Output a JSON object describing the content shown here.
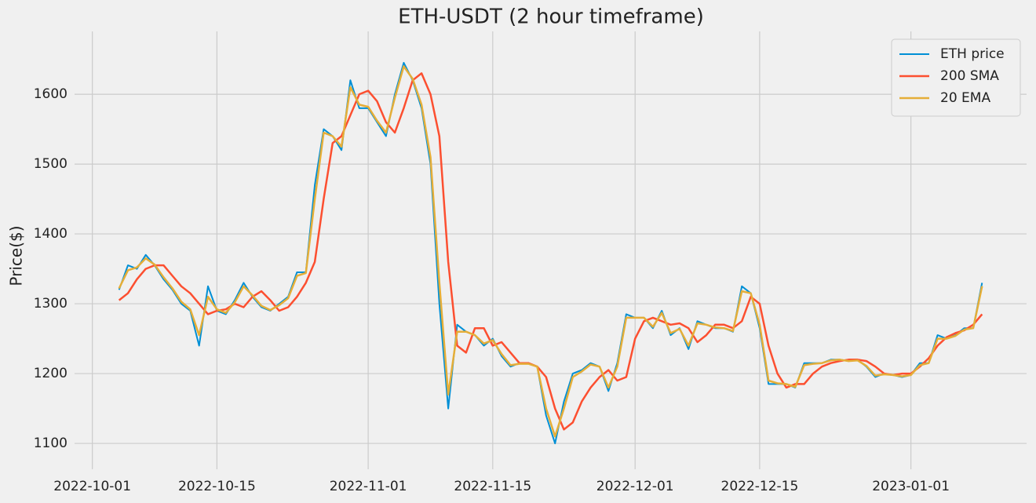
{
  "chart_data": {
    "type": "line",
    "title": "ETH-USDT (2 hour timeframe)",
    "y_label": "Price($)",
    "x": [
      "2022-10-04",
      "2022-10-05",
      "2022-10-06",
      "2022-10-07",
      "2022-10-08",
      "2022-10-09",
      "2022-10-10",
      "2022-10-11",
      "2022-10-12",
      "2022-10-13",
      "2022-10-14",
      "2022-10-15",
      "2022-10-16",
      "2022-10-17",
      "2022-10-18",
      "2022-10-19",
      "2022-10-20",
      "2022-10-21",
      "2022-10-22",
      "2022-10-23",
      "2022-10-24",
      "2022-10-25",
      "2022-10-26",
      "2022-10-27",
      "2022-10-28",
      "2022-10-29",
      "2022-10-30",
      "2022-10-31",
      "2022-11-01",
      "2022-11-02",
      "2022-11-03",
      "2022-11-04",
      "2022-11-05",
      "2022-11-06",
      "2022-11-07",
      "2022-11-08",
      "2022-11-09",
      "2022-11-10",
      "2022-11-11",
      "2022-11-12",
      "2022-11-13",
      "2022-11-14",
      "2022-11-15",
      "2022-11-16",
      "2022-11-17",
      "2022-11-18",
      "2022-11-19",
      "2022-11-20",
      "2022-11-21",
      "2022-11-22",
      "2022-11-23",
      "2022-11-24",
      "2022-11-25",
      "2022-11-26",
      "2022-11-27",
      "2022-11-28",
      "2022-11-29",
      "2022-11-30",
      "2022-12-01",
      "2022-12-02",
      "2022-12-03",
      "2022-12-04",
      "2022-12-05",
      "2022-12-06",
      "2022-12-07",
      "2022-12-08",
      "2022-12-09",
      "2022-12-10",
      "2022-12-11",
      "2022-12-12",
      "2022-12-13",
      "2022-12-14",
      "2022-12-15",
      "2022-12-16",
      "2022-12-17",
      "2022-12-18",
      "2022-12-19",
      "2022-12-20",
      "2022-12-21",
      "2022-12-22",
      "2022-12-23",
      "2022-12-24",
      "2022-12-25",
      "2022-12-26",
      "2022-12-27",
      "2022-12-28",
      "2022-12-29",
      "2022-12-30",
      "2022-12-31",
      "2023-01-01",
      "2023-01-02",
      "2023-01-03",
      "2023-01-04",
      "2023-01-05",
      "2023-01-06",
      "2023-01-07",
      "2023-01-08",
      "2023-01-09"
    ],
    "series": [
      {
        "name": "ETH price",
        "color": "#008fd5",
        "width": 2,
        "values": [
          1320,
          1355,
          1350,
          1370,
          1355,
          1335,
          1320,
          1300,
          1290,
          1240,
          1325,
          1290,
          1285,
          1305,
          1330,
          1310,
          1295,
          1290,
          1300,
          1310,
          1345,
          1345,
          1470,
          1550,
          1540,
          1520,
          1620,
          1580,
          1580,
          1560,
          1540,
          1600,
          1645,
          1620,
          1580,
          1500,
          1300,
          1150,
          1270,
          1260,
          1255,
          1240,
          1250,
          1225,
          1210,
          1215,
          1215,
          1210,
          1140,
          1100,
          1160,
          1200,
          1205,
          1215,
          1210,
          1175,
          1215,
          1285,
          1280,
          1280,
          1265,
          1290,
          1255,
          1265,
          1235,
          1275,
          1270,
          1265,
          1265,
          1260,
          1325,
          1315,
          1265,
          1185,
          1185,
          1185,
          1180,
          1215,
          1215,
          1215,
          1220,
          1220,
          1218,
          1220,
          1210,
          1195,
          1200,
          1198,
          1195,
          1198,
          1215,
          1215,
          1255,
          1250,
          1255,
          1265,
          1265,
          1330
        ]
      },
      {
        "name": "200 SMA",
        "color": "#fc4f30",
        "width": 2.5,
        "values": [
          1305,
          1315,
          1335,
          1350,
          1355,
          1355,
          1340,
          1325,
          1315,
          1300,
          1285,
          1290,
          1292,
          1300,
          1295,
          1310,
          1318,
          1305,
          1290,
          1295,
          1310,
          1330,
          1360,
          1450,
          1530,
          1540,
          1570,
          1600,
          1605,
          1590,
          1560,
          1545,
          1580,
          1620,
          1630,
          1600,
          1540,
          1360,
          1240,
          1230,
          1265,
          1265,
          1240,
          1245,
          1230,
          1215,
          1215,
          1210,
          1195,
          1150,
          1120,
          1130,
          1160,
          1180,
          1195,
          1205,
          1190,
          1195,
          1250,
          1275,
          1280,
          1275,
          1270,
          1272,
          1265,
          1245,
          1255,
          1270,
          1270,
          1265,
          1275,
          1310,
          1300,
          1240,
          1200,
          1180,
          1185,
          1185,
          1200,
          1210,
          1215,
          1218,
          1220,
          1220,
          1218,
          1210,
          1200,
          1198,
          1200,
          1200,
          1210,
          1222,
          1240,
          1252,
          1258,
          1262,
          1270,
          1285
        ]
      },
      {
        "name": "20 EMA",
        "color": "#e5ae38",
        "width": 2.5,
        "values": [
          1322,
          1348,
          1352,
          1365,
          1356,
          1338,
          1322,
          1303,
          1292,
          1255,
          1310,
          1292,
          1287,
          1302,
          1325,
          1312,
          1297,
          1291,
          1298,
          1308,
          1340,
          1344,
          1450,
          1545,
          1540,
          1525,
          1610,
          1585,
          1582,
          1562,
          1545,
          1595,
          1640,
          1622,
          1585,
          1510,
          1330,
          1170,
          1260,
          1260,
          1255,
          1243,
          1248,
          1228,
          1212,
          1214,
          1214,
          1210,
          1150,
          1110,
          1150,
          1195,
          1203,
          1213,
          1210,
          1180,
          1210,
          1280,
          1280,
          1280,
          1267,
          1287,
          1258,
          1264,
          1240,
          1272,
          1270,
          1266,
          1265,
          1261,
          1318,
          1315,
          1270,
          1190,
          1186,
          1185,
          1181,
          1212,
          1214,
          1215,
          1219,
          1220,
          1218,
          1219,
          1211,
          1197,
          1199,
          1198,
          1196,
          1198,
          1212,
          1215,
          1250,
          1250,
          1254,
          1263,
          1265,
          1325
        ]
      }
    ],
    "xlim": [
      "2022-09-29",
      "2023-01-14"
    ],
    "xticks": [
      "2022-10-01",
      "2022-10-15",
      "2022-11-01",
      "2022-11-15",
      "2022-12-01",
      "2022-12-15",
      "2023-01-01"
    ],
    "ylim": [
      1063,
      1690
    ],
    "yticks": [
      1100,
      1200,
      1300,
      1400,
      1500,
      1600
    ],
    "grid": true,
    "legend": "upper right"
  }
}
